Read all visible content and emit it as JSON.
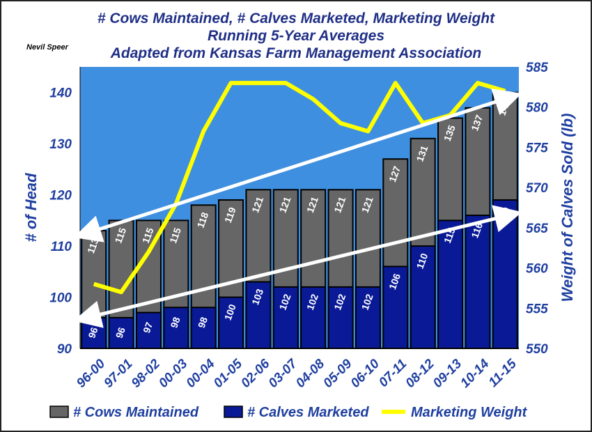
{
  "chart_data": {
    "type": "bar",
    "title": [
      "# Cows Maintained, # Calves Marketed, Marketing Weight",
      "Running 5-Year Averages",
      "Adapted from Kansas Farm Management Association"
    ],
    "author": "Nevil Speer",
    "categories": [
      "96-00",
      "97-01",
      "98-02",
      "00-03",
      "00-04",
      "01-05",
      "02-06",
      "03-07",
      "04-08",
      "05-09",
      "06-10",
      "07-11",
      "08-12",
      "09-13",
      "10-14",
      "11-15"
    ],
    "ylabel": "# of Head",
    "y2label": "Weight of Calves Sold (lb)",
    "ylim": [
      90,
      145
    ],
    "y2lim": [
      550,
      585
    ],
    "yticks": [
      90,
      100,
      110,
      120,
      130,
      140
    ],
    "y2ticks": [
      550,
      555,
      560,
      565,
      570,
      575,
      580,
      585
    ],
    "series": [
      {
        "name": "# Cows Maintained",
        "type": "bar",
        "color": "#666666",
        "values": [
          113,
          115,
          115,
          115,
          118,
          119,
          121,
          121,
          121,
          121,
          121,
          127,
          131,
          135,
          137,
          140
        ]
      },
      {
        "name": "# Calves Marketed",
        "type": "bar",
        "color": "#0a1a96",
        "values": [
          96,
          96,
          97,
          98,
          98,
          100,
          103,
          102,
          102,
          102,
          102,
          106,
          110,
          115,
          116,
          119
        ]
      },
      {
        "name": "Marketing Weight",
        "type": "line",
        "axis": "right",
        "color": "#ffff00",
        "values": [
          558,
          557,
          562,
          568,
          577,
          583,
          583,
          583,
          581,
          578,
          577,
          583,
          578,
          579,
          583,
          582
        ]
      }
    ],
    "legend": [
      "# Cows Maintained",
      "# Calves Marketed",
      "Marketing Weight"
    ],
    "colors": {
      "plot_bg": "#3f8fe0",
      "axis_text": "#1f3fa0",
      "title": "#1f2f86"
    }
  }
}
